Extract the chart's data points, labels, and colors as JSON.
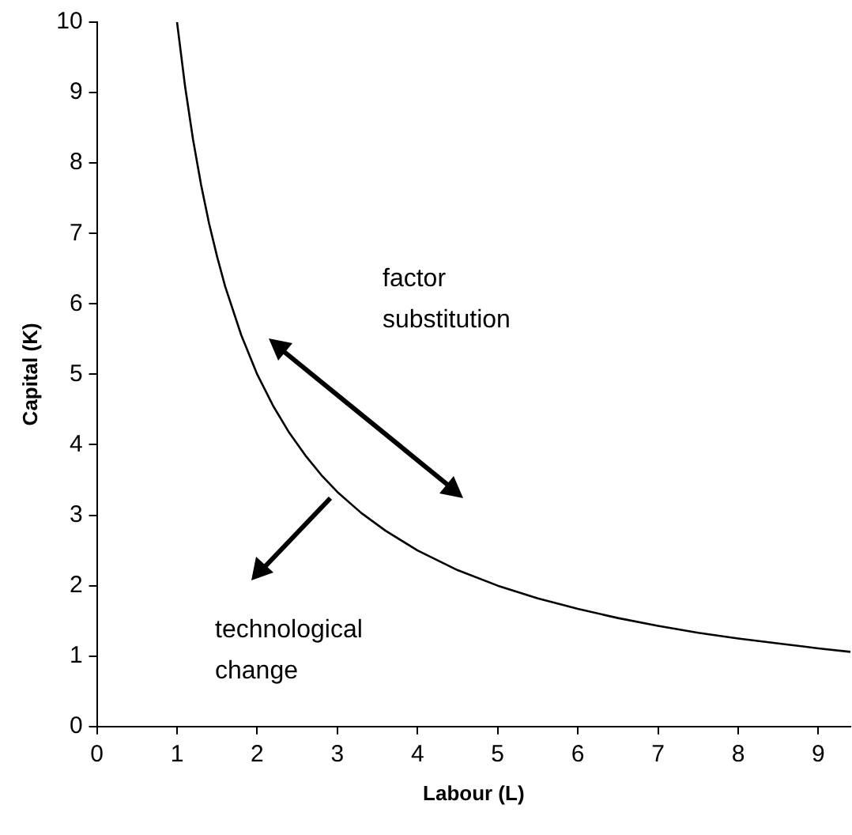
{
  "chart_data": {
    "type": "line",
    "xlabel": "Labour (L)",
    "ylabel": "Capital (K)",
    "x": [
      1,
      1.1,
      1.2,
      1.3,
      1.4,
      1.5,
      1.6,
      1.8,
      2,
      2.2,
      2.4,
      2.6,
      2.8,
      3,
      3.3,
      3.6,
      4,
      4.5,
      5,
      5.5,
      6,
      6.5,
      7,
      7.5,
      8,
      8.5,
      9,
      9.4
    ],
    "series": [
      {
        "color": "#000000",
        "values": [
          10,
          9.09,
          8.33,
          7.69,
          7.14,
          6.67,
          6.25,
          5.56,
          5,
          4.55,
          4.17,
          3.85,
          3.57,
          3.33,
          3.03,
          2.78,
          2.5,
          2.22,
          2,
          1.82,
          1.67,
          1.54,
          1.43,
          1.33,
          1.25,
          1.18,
          1.11,
          1.06
        ]
      }
    ],
    "xlim": [
      0,
      9.4
    ],
    "xticks": [
      0,
      1,
      2,
      3,
      4,
      5,
      6,
      7,
      8,
      9
    ],
    "ylim": [
      0,
      10
    ],
    "yticks": [
      0,
      1,
      2,
      3,
      4,
      5,
      6,
      7,
      8,
      9,
      10
    ],
    "grid": false,
    "legend": false,
    "marker": "none",
    "line_style": "solid",
    "annotations": [
      "factor\nsubstitution",
      "technological\nchange"
    ]
  }
}
